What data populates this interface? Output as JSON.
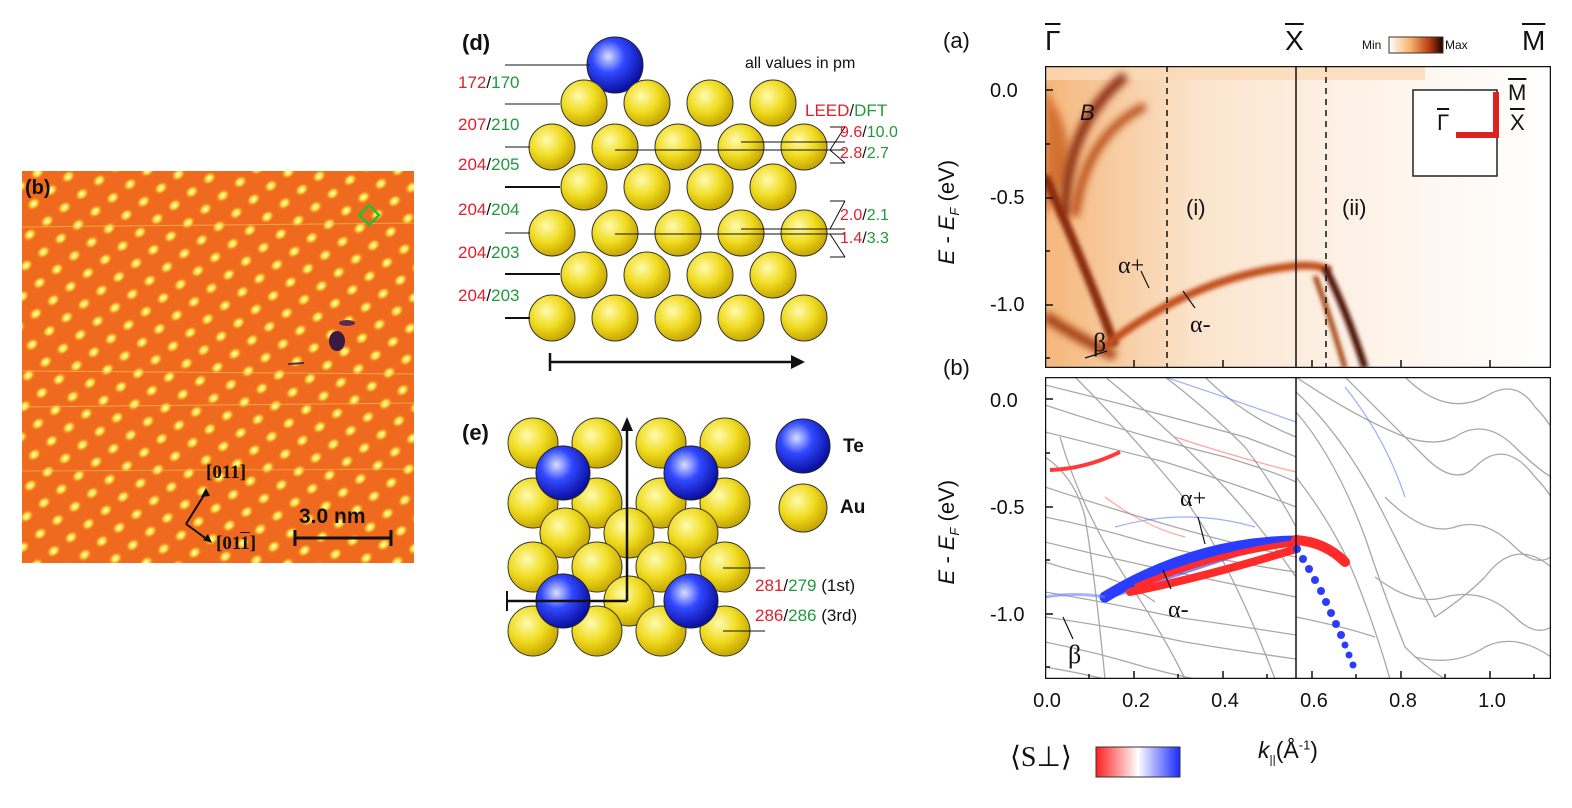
{
  "stm": {
    "panel_label": "(b)",
    "dir_up": "[011]",
    "dir_down": "[01",
    "dir_down_digit": "1",
    "dir_down_close": "]",
    "scalebar": "3.0 nm"
  },
  "side_view": {
    "panel_label": "(d)",
    "units_note": "all values in pm",
    "legend_leed": "LEED",
    "legend_slash": "/",
    "legend_dft": "DFT",
    "layer_spacings": [
      {
        "leed": "172",
        "dft": "170"
      },
      {
        "leed": "207",
        "dft": "210"
      },
      {
        "leed": "204",
        "dft": "205"
      },
      {
        "leed": "204",
        "dft": "204"
      },
      {
        "leed": "204",
        "dft": "203"
      },
      {
        "leed": "204",
        "dft": "203"
      }
    ],
    "bucklings": [
      {
        "leed": "9.6",
        "dft": "10.0"
      },
      {
        "leed": "2.8",
        "dft": "2.7"
      },
      {
        "leed": "2.0",
        "dft": "2.1"
      },
      {
        "leed": "1.4",
        "dft": "3.3"
      }
    ]
  },
  "top_view": {
    "panel_label": "(e)",
    "legend": [
      {
        "label": "Te",
        "color": "#1a2ee0"
      },
      {
        "label": "Au",
        "color": "#e8d21a"
      }
    ],
    "distances": [
      {
        "leed": "281",
        "dft": "279",
        "layer": "(1st)"
      },
      {
        "leed": "286",
        "dft": "286",
        "layer": "(3rd)"
      }
    ]
  },
  "arpes": {
    "panel_label": "(a)",
    "k_labels": {
      "gamma": "Γ",
      "x": "X",
      "m": "M"
    },
    "colorbar": {
      "min": "Min",
      "max": "Max"
    },
    "band_labels": {
      "b": "B",
      "region_i": "(i)",
      "region_ii": "(ii)",
      "alpha_plus": "α+",
      "alpha_minus": "α-",
      "beta": "β"
    },
    "inset": {
      "gamma": "Γ",
      "x": "X",
      "m": "M"
    },
    "yticks": [
      "0.0",
      "-0.5",
      "-1.0"
    ],
    "ylabel": "E - E",
    "ylabel_sub": "F",
    "ylabel_unit": " (eV)"
  },
  "dft": {
    "panel_label": "(b)",
    "yticks": [
      "0.0",
      "-0.5",
      "-1.0"
    ],
    "xticks": [
      "0.0",
      "0.2",
      "0.4",
      "0.6",
      "0.8",
      "1.0"
    ],
    "ylabel": "E - E",
    "ylabel_sub": "F",
    "ylabel_unit": " (eV)",
    "xlabel": "k",
    "xlabel_sub": "||",
    "xlabel_unit": "(Å",
    "xlabel_exp": "-1",
    "xlabel_close": ")",
    "band_labels": {
      "alpha_plus": "α+",
      "alpha_minus": "α-",
      "beta": "β"
    },
    "spin_legend": "⟨S⊥⟩",
    "colors": {
      "spin_up": "#2a3cff",
      "spin_down": "#ff2a2a"
    }
  }
}
